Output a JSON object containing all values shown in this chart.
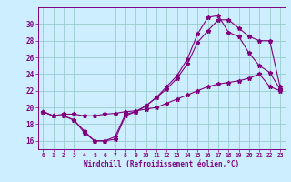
{
  "xlabel": "Windchill (Refroidissement éolien,°C)",
  "x_values": [
    0,
    1,
    2,
    3,
    4,
    5,
    6,
    7,
    8,
    9,
    10,
    11,
    12,
    13,
    14,
    15,
    16,
    17,
    18,
    19,
    20,
    21,
    22,
    23
  ],
  "line1": [
    19.5,
    19.0,
    19.0,
    18.5,
    17.2,
    16.0,
    16.0,
    16.2,
    19.0,
    19.5,
    20.2,
    21.2,
    22.2,
    23.5,
    25.2,
    27.8,
    29.2,
    30.5,
    30.5,
    29.5,
    28.5,
    28.0,
    28.0,
    22.5
  ],
  "line2": [
    19.5,
    19.0,
    19.0,
    18.5,
    17.0,
    16.0,
    16.0,
    16.5,
    19.2,
    19.5,
    20.2,
    21.2,
    22.5,
    23.8,
    25.8,
    28.8,
    30.8,
    31.0,
    29.0,
    28.5,
    26.5,
    25.0,
    24.2,
    22.2
  ],
  "line3": [
    19.5,
    19.0,
    19.2,
    19.2,
    19.0,
    19.0,
    19.2,
    19.3,
    19.5,
    19.6,
    19.8,
    20.0,
    20.5,
    21.0,
    21.5,
    22.0,
    22.5,
    22.8,
    23.0,
    23.2,
    23.5,
    24.0,
    22.5,
    22.0
  ],
  "line_color": "#800080",
  "bg_color": "#cceeff",
  "grid_color": "#99cccc",
  "ylim": [
    15.0,
    32.0
  ],
  "yticks": [
    16,
    18,
    20,
    22,
    24,
    26,
    28,
    30
  ],
  "xlim": [
    -0.5,
    23.5
  ],
  "xticks": [
    0,
    1,
    2,
    3,
    4,
    5,
    6,
    7,
    8,
    9,
    10,
    11,
    12,
    13,
    14,
    15,
    16,
    17,
    18,
    19,
    20,
    21,
    22,
    23
  ]
}
